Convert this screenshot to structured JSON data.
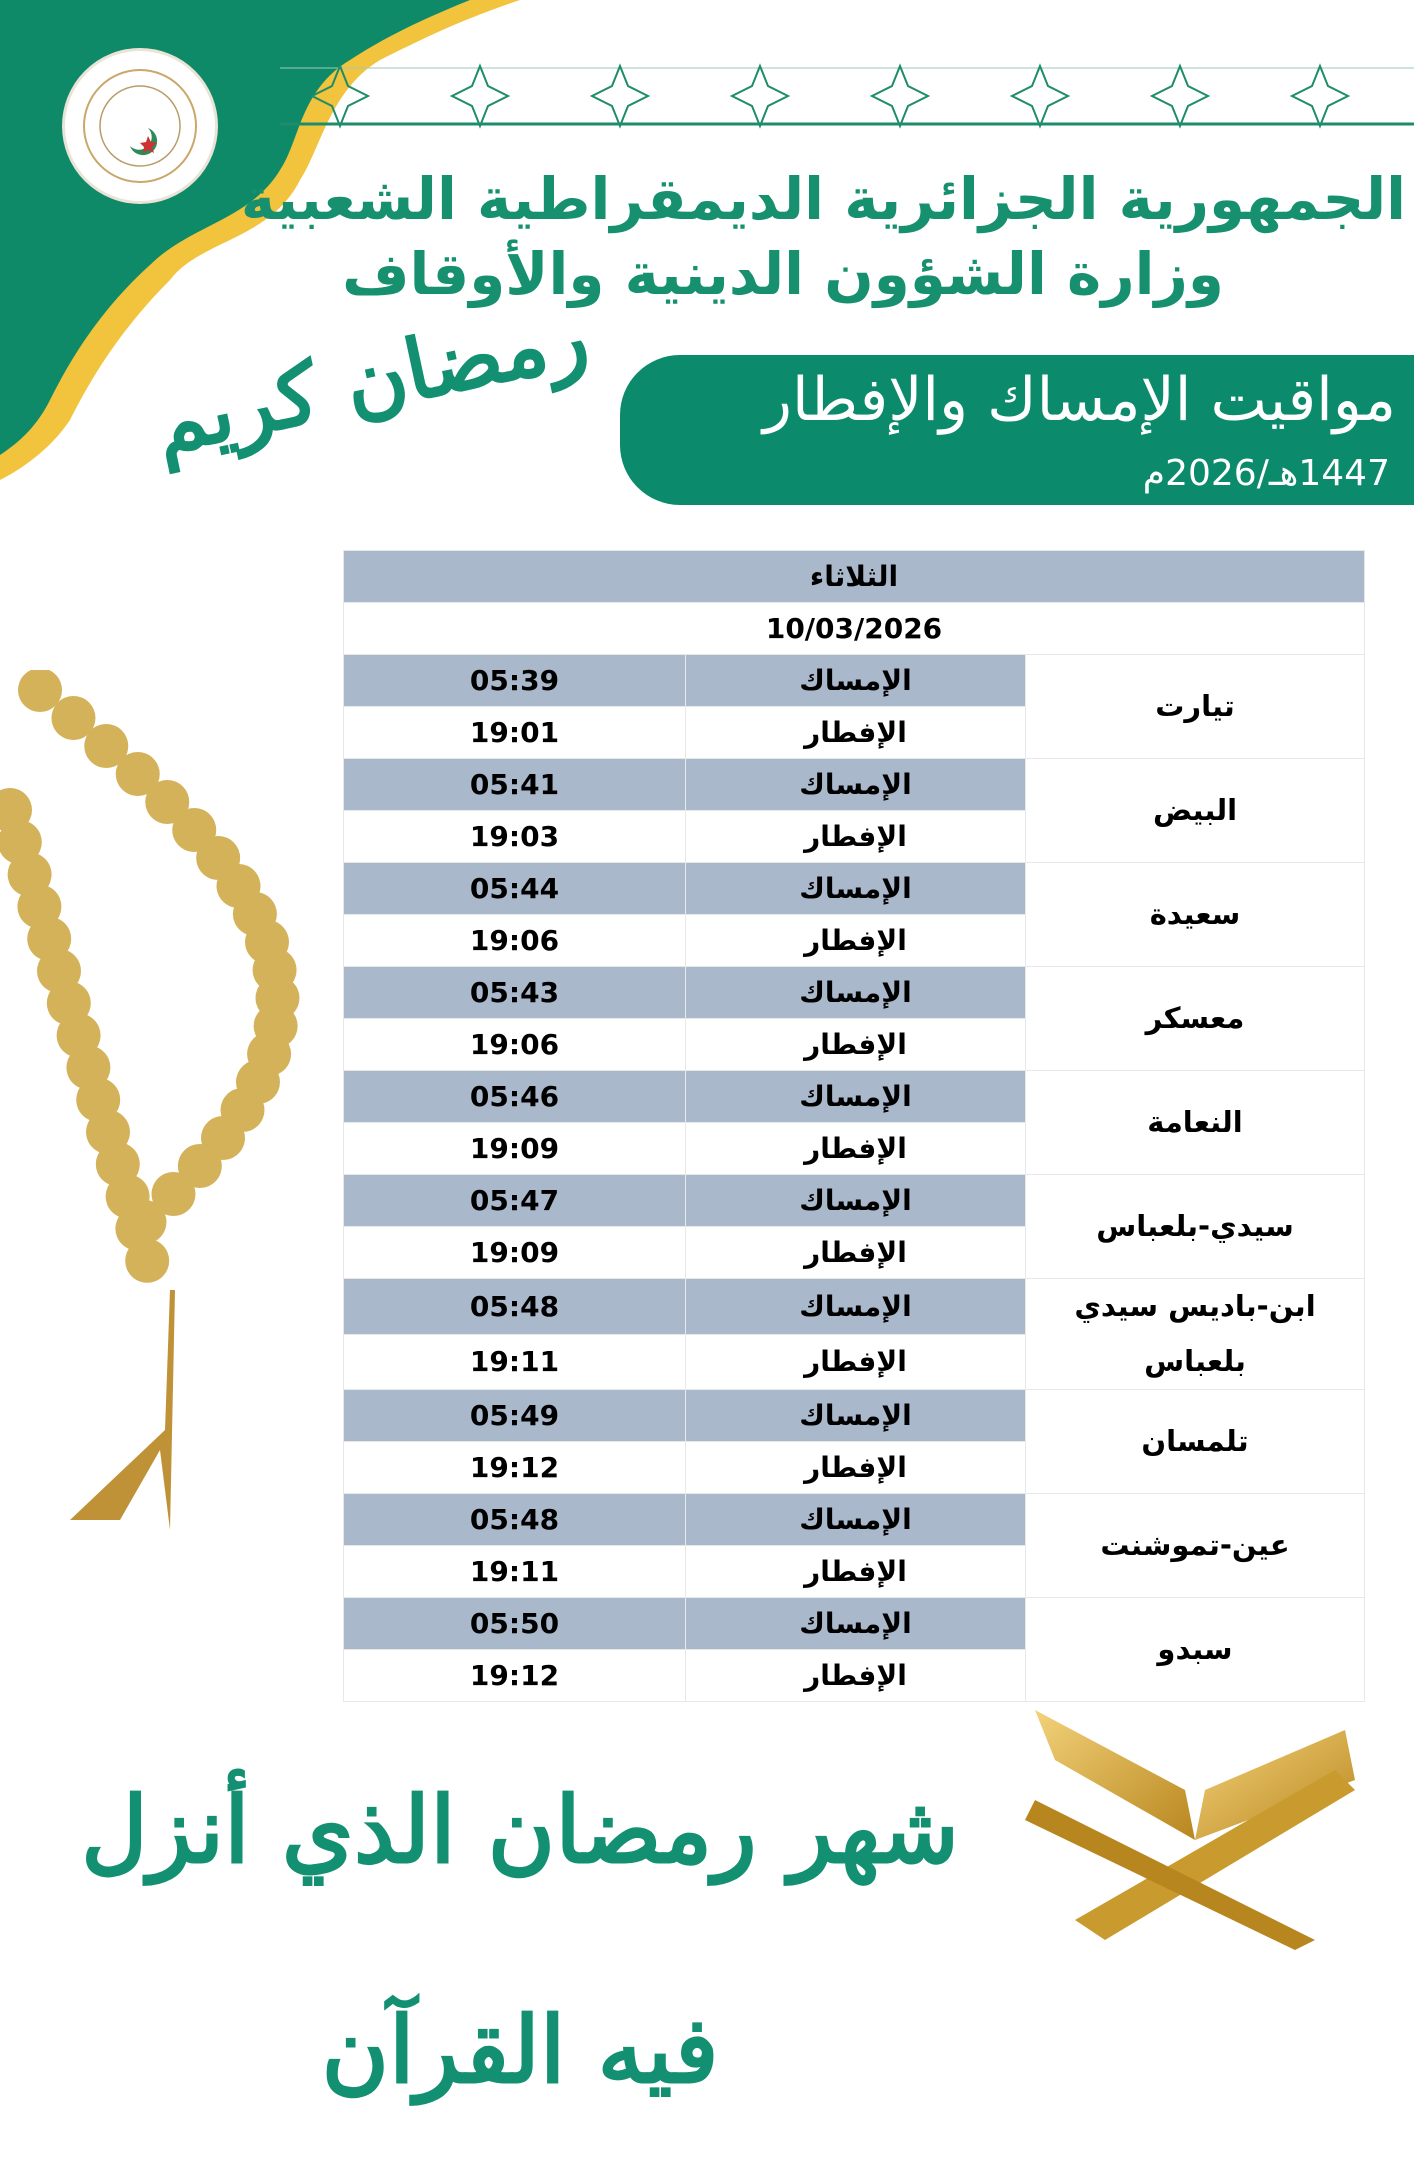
{
  "header": {
    "logo_text": "وزارة الشؤون الدينية والأوقاف",
    "line1": "الجمهورية الجزائرية الديمقراطية الشعبية",
    "line2": "وزارة الشؤون الدينية والأوقاف"
  },
  "banner": {
    "title": "مواقيت الإمساك والإفطار",
    "year": "1447هـ/2026م"
  },
  "calligraphy": {
    "ramadan": "رمضان كريم",
    "verse": "شهر رمضان الذي أنزل فيه القرآن"
  },
  "colors": {
    "green": "#0b8b6b",
    "gold": "#f2c33c",
    "row_grey": "#aab8cb"
  },
  "table": {
    "day": "الثلاثاء",
    "date": "10/03/2026",
    "imsak_label": "الإمساك",
    "iftar_label": "الإفطار",
    "rows": [
      {
        "city": "تيارت",
        "imsak": "05:39",
        "iftar": "19:01"
      },
      {
        "city": "البيض",
        "imsak": "05:41",
        "iftar": "19:03"
      },
      {
        "city": "سعيدة",
        "imsak": "05:44",
        "iftar": "19:06"
      },
      {
        "city": "معسكر",
        "imsak": "05:43",
        "iftar": "19:06"
      },
      {
        "city": "النعامة",
        "imsak": "05:46",
        "iftar": "19:09"
      },
      {
        "city": "سيدي-بلعباس",
        "imsak": "05:47",
        "iftar": "19:09"
      },
      {
        "city": "ابن-باديس سيدي بلعباس",
        "imsak": "05:48",
        "iftar": "19:11"
      },
      {
        "city": "تلمسان",
        "imsak": "05:49",
        "iftar": "19:12"
      },
      {
        "city": "عين-تموشنت",
        "imsak": "05:48",
        "iftar": "19:11"
      },
      {
        "city": "سبدو",
        "imsak": "05:50",
        "iftar": "19:12"
      }
    ]
  }
}
